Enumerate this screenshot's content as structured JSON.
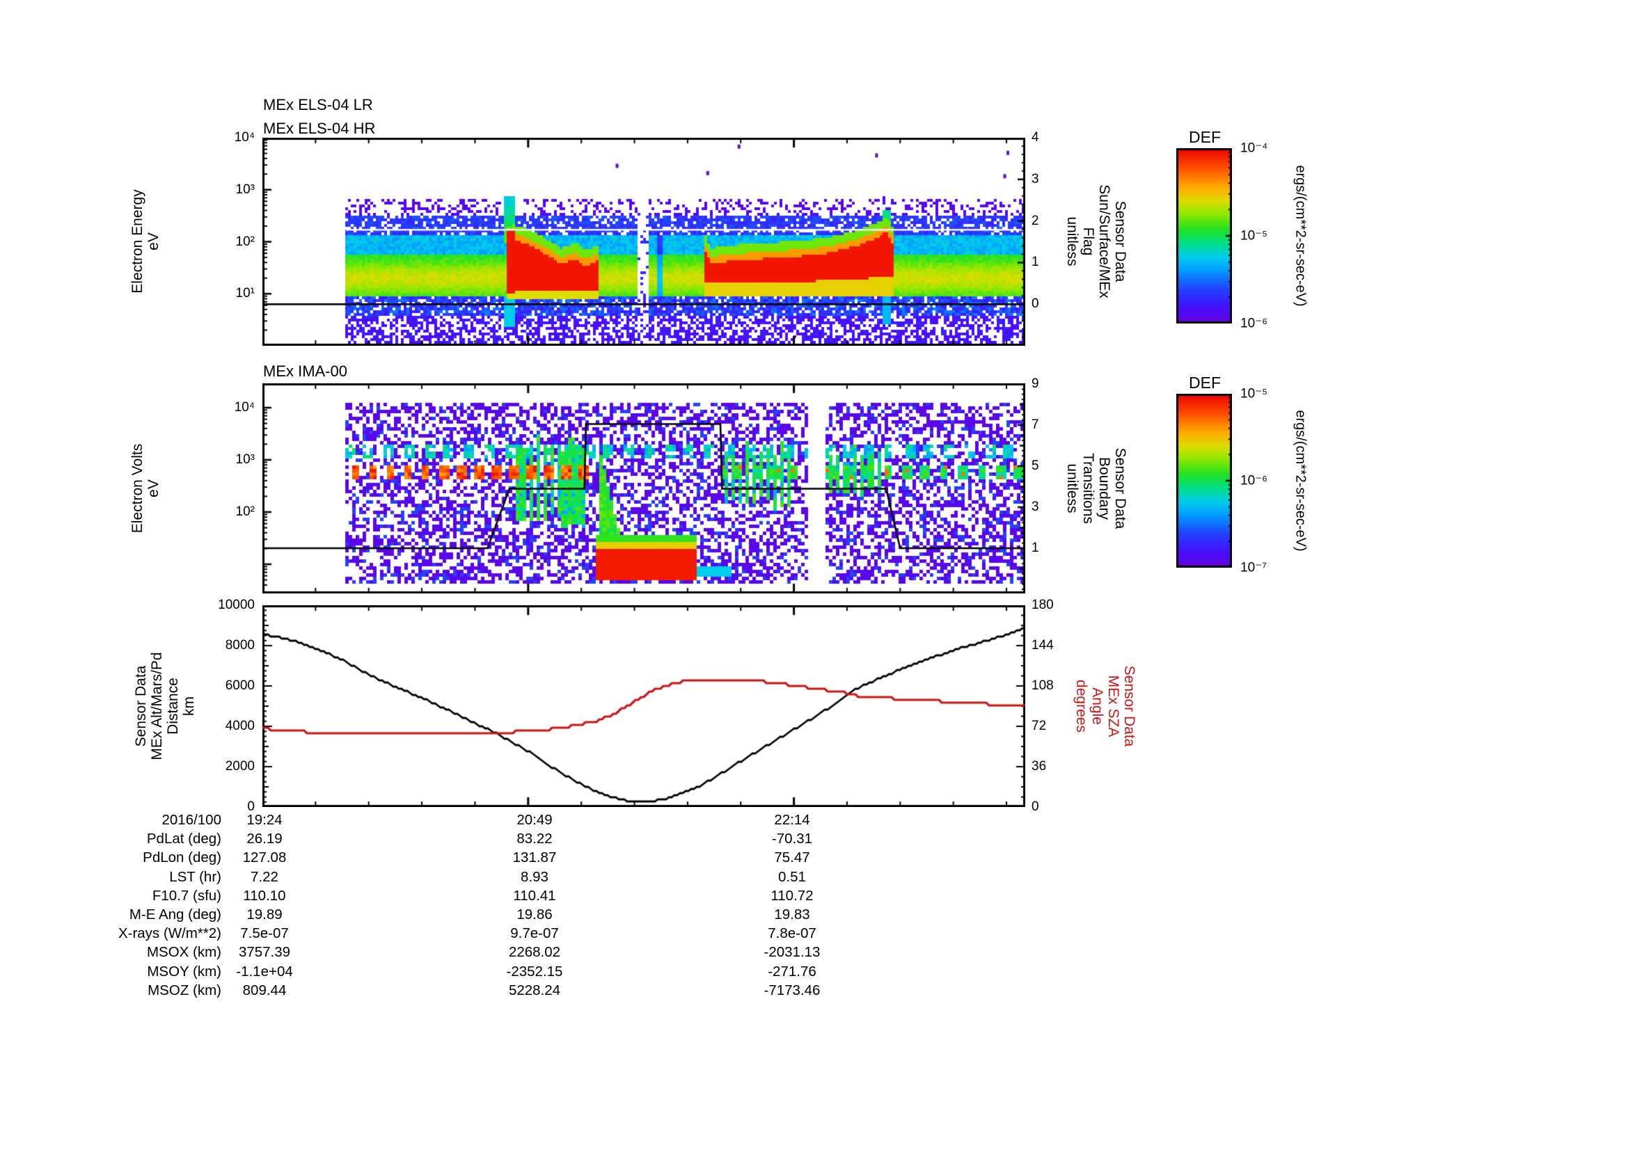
{
  "page": {
    "background": "#ffffff"
  },
  "colors": {
    "sza_red": "#c81616",
    "line_black": "#000000",
    "dot_purple": "#5511cc"
  },
  "panels": {
    "els": {
      "title_lr": "MEx ELS-04 LR",
      "title_hr": "MEx ELS-04 HR",
      "ylabel_lines": [
        "Electron Energy",
        "eV"
      ],
      "left_ticks": [
        {
          "logE": 4,
          "label": "10⁴"
        },
        {
          "logE": 3,
          "label": "10³"
        },
        {
          "logE": 2,
          "label": "10²"
        },
        {
          "logE": 1,
          "label": "10¹"
        }
      ],
      "right_label_lines": [
        "Sensor Data",
        "Sun/Surface/MEx",
        "Flag",
        "unitless"
      ],
      "right_ticks": [
        {
          "v": 4,
          "label": "4"
        },
        {
          "v": 3,
          "label": "3"
        },
        {
          "v": 2,
          "label": "2"
        },
        {
          "v": 1,
          "label": "1"
        },
        {
          "v": 0,
          "label": "0"
        }
      ]
    },
    "ima": {
      "title": "MEx IMA-00",
      "ylabel_lines": [
        "Electron Volts",
        "eV"
      ],
      "left_ticks": [
        {
          "logE": 4,
          "label": "10⁴"
        },
        {
          "logE": 3,
          "label": "10³"
        },
        {
          "logE": 2,
          "label": "10²"
        }
      ],
      "right_label_lines": [
        "Sensor Data",
        "Boundary",
        "Transitions",
        "unitless"
      ],
      "right_ticks": [
        {
          "v": 9,
          "label": "9"
        },
        {
          "v": 7,
          "label": "7"
        },
        {
          "v": 5,
          "label": "5"
        },
        {
          "v": 3,
          "label": "3"
        },
        {
          "v": 1,
          "label": "1"
        }
      ]
    },
    "timeline": {
      "ylabel_lines": [
        "Sensor Data",
        "MEx Alt/Mars/Pd",
        "Distance",
        "km"
      ],
      "left_ticks": [
        {
          "v": 10000,
          "label": "10000"
        },
        {
          "v": 8000,
          "label": "8000"
        },
        {
          "v": 6000,
          "label": "6000"
        },
        {
          "v": 4000,
          "label": "4000"
        },
        {
          "v": 2000,
          "label": "2000"
        },
        {
          "v": 0,
          "label": "0"
        }
      ],
      "right_label_lines": [
        "Sensor Data",
        "MEx SZA",
        "Angle",
        "degrees"
      ],
      "right_ticks": [
        {
          "v": 180,
          "label": "180"
        },
        {
          "v": 144,
          "label": "144"
        },
        {
          "v": 108,
          "label": "108"
        },
        {
          "v": 72,
          "label": "72"
        },
        {
          "v": 36,
          "label": "36"
        },
        {
          "v": 0,
          "label": "0"
        }
      ]
    }
  },
  "colorbars": [
    {
      "title": "DEF",
      "unit": "ergs/(cm**2-sr-sec-eV)",
      "tick_labels": [
        "10⁻⁴",
        "10⁻⁵",
        "10⁻⁶"
      ]
    },
    {
      "title": "DEF",
      "unit": "ergs/(cm**2-sr-sec-eV)",
      "tick_labels": [
        "10⁻⁵",
        "10⁻⁶",
        "10⁻⁷"
      ]
    }
  ],
  "table": {
    "rows": [
      {
        "label": "2016/100",
        "values": [
          "19:24",
          "20:49",
          "22:14"
        ]
      },
      {
        "label": "PdLat (deg)",
        "values": [
          "26.19",
          "83.22",
          "-70.31"
        ]
      },
      {
        "label": "PdLon (deg)",
        "values": [
          "127.08",
          "131.87",
          "75.47"
        ]
      },
      {
        "label": "LST (hr)",
        "values": [
          "7.22",
          "8.93",
          "0.51"
        ]
      },
      {
        "label": "F10.7 (sfu)",
        "values": [
          "110.10",
          "110.41",
          "110.72"
        ]
      },
      {
        "label": "M-E Ang (deg)",
        "values": [
          "19.89",
          "19.86",
          "19.83"
        ]
      },
      {
        "label": "X-rays (W/m**2)",
        "values": [
          "7.5e-07",
          "9.7e-07",
          "7.8e-07"
        ]
      },
      {
        "label": "MSOX (km)",
        "values": [
          "3757.39",
          "2268.02",
          "-2031.13"
        ]
      },
      {
        "label": "MSOY (km)",
        "values": [
          "-1.1e+04",
          "-2352.15",
          "-271.76"
        ]
      },
      {
        "label": "MSOZ (km)",
        "values": [
          "809.44",
          "5228.24",
          "-7173.46"
        ]
      }
    ]
  },
  "chart_data": [
    {
      "type": "heatmap",
      "id": "els",
      "title": "MEx ELS-04 LR / MEx ELS-04 HR",
      "ylabel": "Electron Energy (eV)",
      "yscale": "log",
      "ylim": [
        1,
        10000
      ],
      "x_start_label": "19:24",
      "x_tick_labels": [
        "19:24",
        "20:49",
        "22:14"
      ],
      "x_tick_minutes": [
        0,
        85,
        170
      ],
      "x_minor_minutes": [
        17,
        34,
        51,
        68,
        102,
        119,
        136,
        153,
        187,
        204,
        221,
        238
      ],
      "xlim_minutes": [
        0,
        244
      ],
      "data_start_minute": 26.7,
      "colorbar": {
        "title": "DEF",
        "unit": "ergs/(cm**2-sr-sec-eV)",
        "range_top": "1e-4",
        "range_bottom": "1e-6"
      },
      "right_axis": {
        "label": "Sensor Data Sun/Surface/MEx Flag (unitless)",
        "range": [
          -1,
          4
        ],
        "flag_line_value": 0,
        "white_line_value": 1.76
      },
      "bands": [
        {
          "name": "core-flux",
          "logE": [
            0.95,
            1.78
          ],
          "level": "green-yellow"
        },
        {
          "name": "mid-flux",
          "logE": [
            1.78,
            2.15
          ],
          "level": "cyan-blue"
        },
        {
          "name": "suprathermal-speckle",
          "logE": [
            2.15,
            2.55
          ],
          "level": "blue"
        },
        {
          "name": "sparse-speckle",
          "logE": [
            2.55,
            2.85
          ],
          "level": "purple"
        },
        {
          "name": "low-energy-tail",
          "logE": [
            0.0,
            0.95
          ],
          "level": "blue-purple"
        }
      ],
      "features": {
        "red_blob_1": {
          "t": [
            77.5,
            107.5
          ],
          "logE_bottom": 1.08,
          "logE_top": [
            [
              77.5,
              2.02
            ],
            [
              80,
              2.05
            ],
            [
              84,
              1.98
            ],
            [
              88,
              1.86
            ],
            [
              92,
              1.72
            ],
            [
              95,
              1.6
            ],
            [
              97,
              1.64
            ],
            [
              100,
              1.7
            ],
            [
              102,
              1.57
            ],
            [
              105,
              1.6
            ],
            [
              107.5,
              1.7
            ]
          ]
        },
        "spike_1": {
          "t": [
            77,
            80.5
          ],
          "logE_top": 2.9
        },
        "data_gap": {
          "t": [
            119.3,
            122.8
          ]
        },
        "weak_gap": {
          "t": [
            125.8,
            128.0
          ]
        },
        "red_blob_2": {
          "t": [
            141,
            201.5
          ],
          "logE_bottom": [
            [
              141,
              1.25
            ],
            [
              160,
              1.22
            ],
            [
              180,
              1.28
            ],
            [
              195,
              1.33
            ],
            [
              201.5,
              1.35
            ]
          ],
          "logE_top": [
            [
              141,
              1.88
            ],
            [
              143,
              1.6
            ],
            [
              150,
              1.66
            ],
            [
              160,
              1.7
            ],
            [
              170,
              1.74
            ],
            [
              180,
              1.8
            ],
            [
              190,
              1.95
            ],
            [
              197,
              2.12
            ],
            [
              199,
              2.22
            ],
            [
              201.5,
              1.95
            ]
          ]
        },
        "spike_2": {
          "t": [
            198,
            201
          ],
          "logE_top": 2.65
        },
        "dots": [
          [
            152,
            3.87
          ],
          [
            238,
            3.75
          ],
          [
            142,
            3.36
          ],
          [
            196,
            3.7
          ],
          [
            237,
            3.3
          ],
          [
            113,
            3.5
          ]
        ]
      }
    },
    {
      "type": "heatmap",
      "id": "ima",
      "title": "MEx IMA-00",
      "ylabel": "Electron Volts (eV)",
      "yscale": "log",
      "ylim_logE": [
        0.44,
        4.47
      ],
      "xlim_minutes": [
        0,
        244
      ],
      "data_start_minute": 26.7,
      "colorbar": {
        "title": "DEF",
        "unit": "ergs/(cm**2-sr-sec-eV)",
        "range_top": "1e-5",
        "range_bottom": "1e-7"
      },
      "right_axis": {
        "label": "Sensor Data Boundary Transitions (unitless)",
        "range": [
          -1.2,
          9.1
        ]
      },
      "boundary_line_points": [
        [
          0,
          1
        ],
        [
          72,
          1
        ],
        [
          79,
          3.9
        ],
        [
          103,
          3.9
        ],
        [
          103.5,
          7.05
        ],
        [
          146.5,
          7.05
        ],
        [
          147,
          3.9
        ],
        [
          199.5,
          3.9
        ],
        [
          204,
          1
        ],
        [
          244,
          1
        ]
      ],
      "features": {
        "speckle": {
          "logE": [
            0.65,
            4.1
          ],
          "fill": 0.52
        },
        "cyan_dash_band": {
          "logE": [
            3.08,
            3.3
          ],
          "t": [
            26.7,
            244
          ]
        },
        "red_dash_band": {
          "logE": [
            2.68,
            2.92
          ],
          "t_red": [
            26.7,
            104
          ],
          "t_green": [
            146,
            244
          ]
        },
        "stripe_groups": [
          {
            "t_start": 81.5,
            "t_end": 103,
            "spacing": 2.1,
            "logE_top": 3.55,
            "logE_bottom": 1.65
          },
          {
            "t_start": 147.5,
            "t_end": 169,
            "spacing": 2.3,
            "logE_top": 3.45,
            "logE_bottom": 2.0
          },
          {
            "t_start": 181,
            "t_end": 197.5,
            "spacing": 2.6,
            "logE_top": 3.4,
            "logE_bottom": 2.15
          }
        ],
        "bottom_red_blob": {
          "t": [
            106.5,
            138
          ],
          "logE_red": [
            0.7,
            1.32
          ],
          "column_t": [
            107,
            113.5
          ],
          "tail_t": [
            138,
            149
          ],
          "tail_logE": [
            0.78,
            1.02
          ]
        },
        "data_gap": {
          "t": [
            174.5,
            179.5
          ]
        }
      }
    },
    {
      "type": "line",
      "id": "timeline",
      "x_tick_labels": [
        "19:24",
        "20:49",
        "22:14"
      ],
      "x_tick_minutes": [
        0,
        85,
        170
      ],
      "x_minor_minutes": [
        17,
        34,
        51,
        68,
        102,
        119,
        136,
        153,
        187,
        204,
        221,
        238
      ],
      "xlim_minutes": [
        0,
        244
      ],
      "ylim_left": [
        0,
        10000
      ],
      "ylim_right": [
        0,
        180
      ],
      "series": [
        {
          "name": "MEx Alt/Mars/Pd Distance",
          "unit": "km",
          "axis": "left",
          "color": "#000000",
          "points": [
            [
              0,
              8550
            ],
            [
              8,
              8330
            ],
            [
              17,
              7860
            ],
            [
              25,
              7340
            ],
            [
              34,
              6550
            ],
            [
              43,
              5930
            ],
            [
              51,
              5410
            ],
            [
              59,
              4830
            ],
            [
              67,
              4240
            ],
            [
              76,
              3550
            ],
            [
              85,
              2760
            ],
            [
              94,
              1830
            ],
            [
              103,
              1030
            ],
            [
              108,
              700
            ],
            [
              112,
              480
            ],
            [
              116,
              330
            ],
            [
              120,
              270
            ],
            [
              124,
              270
            ],
            [
              128,
              380
            ],
            [
              132,
              560
            ],
            [
              138,
              900
            ],
            [
              144,
              1400
            ],
            [
              150,
              1970
            ],
            [
              156,
              2550
            ],
            [
              162,
              3100
            ],
            [
              167,
              3560
            ],
            [
              172,
              4030
            ],
            [
              178,
              4600
            ],
            [
              184,
              5200
            ],
            [
              190,
              5860
            ],
            [
              196,
              6280
            ],
            [
              203,
              6750
            ],
            [
              210,
              7170
            ],
            [
              217,
              7550
            ],
            [
              223,
              7870
            ],
            [
              230,
              8170
            ],
            [
              237,
              8500
            ],
            [
              244,
              8860
            ]
          ]
        },
        {
          "name": "MEx SZA Angle",
          "unit": "degrees",
          "axis": "right",
          "color": "#c81616",
          "points": [
            [
              0,
              70
            ],
            [
              4,
              69
            ],
            [
              10,
              68
            ],
            [
              14,
              67
            ],
            [
              40,
              67
            ],
            [
              58,
              67
            ],
            [
              72,
              66
            ],
            [
              77,
              66
            ],
            [
              80,
              67
            ],
            [
              86,
              68
            ],
            [
              91,
              69
            ],
            [
              96,
              71
            ],
            [
              100,
              73
            ],
            [
              104,
              75
            ],
            [
              107,
              77
            ],
            [
              110,
              80
            ],
            [
              113,
              84
            ],
            [
              116,
              89
            ],
            [
              119,
              94
            ],
            [
              122,
              99
            ],
            [
              125,
              104
            ],
            [
              128,
              107
            ],
            [
              131,
              110
            ],
            [
              134,
              112
            ],
            [
              137,
              113
            ],
            [
              140,
              114
            ],
            [
              149,
              114
            ],
            [
              154,
              113
            ],
            [
              160,
              112
            ],
            [
              166,
              110
            ],
            [
              171,
              108
            ],
            [
              176,
              106
            ],
            [
              181,
              104
            ],
            [
              186,
              102
            ],
            [
              191,
              99
            ],
            [
              196,
              98
            ],
            [
              201,
              97
            ],
            [
              207,
              96
            ],
            [
              213,
              95
            ],
            [
              219,
              94
            ],
            [
              225,
              93
            ],
            [
              231,
              92
            ],
            [
              237,
              91
            ],
            [
              244,
              91
            ]
          ]
        }
      ]
    }
  ]
}
